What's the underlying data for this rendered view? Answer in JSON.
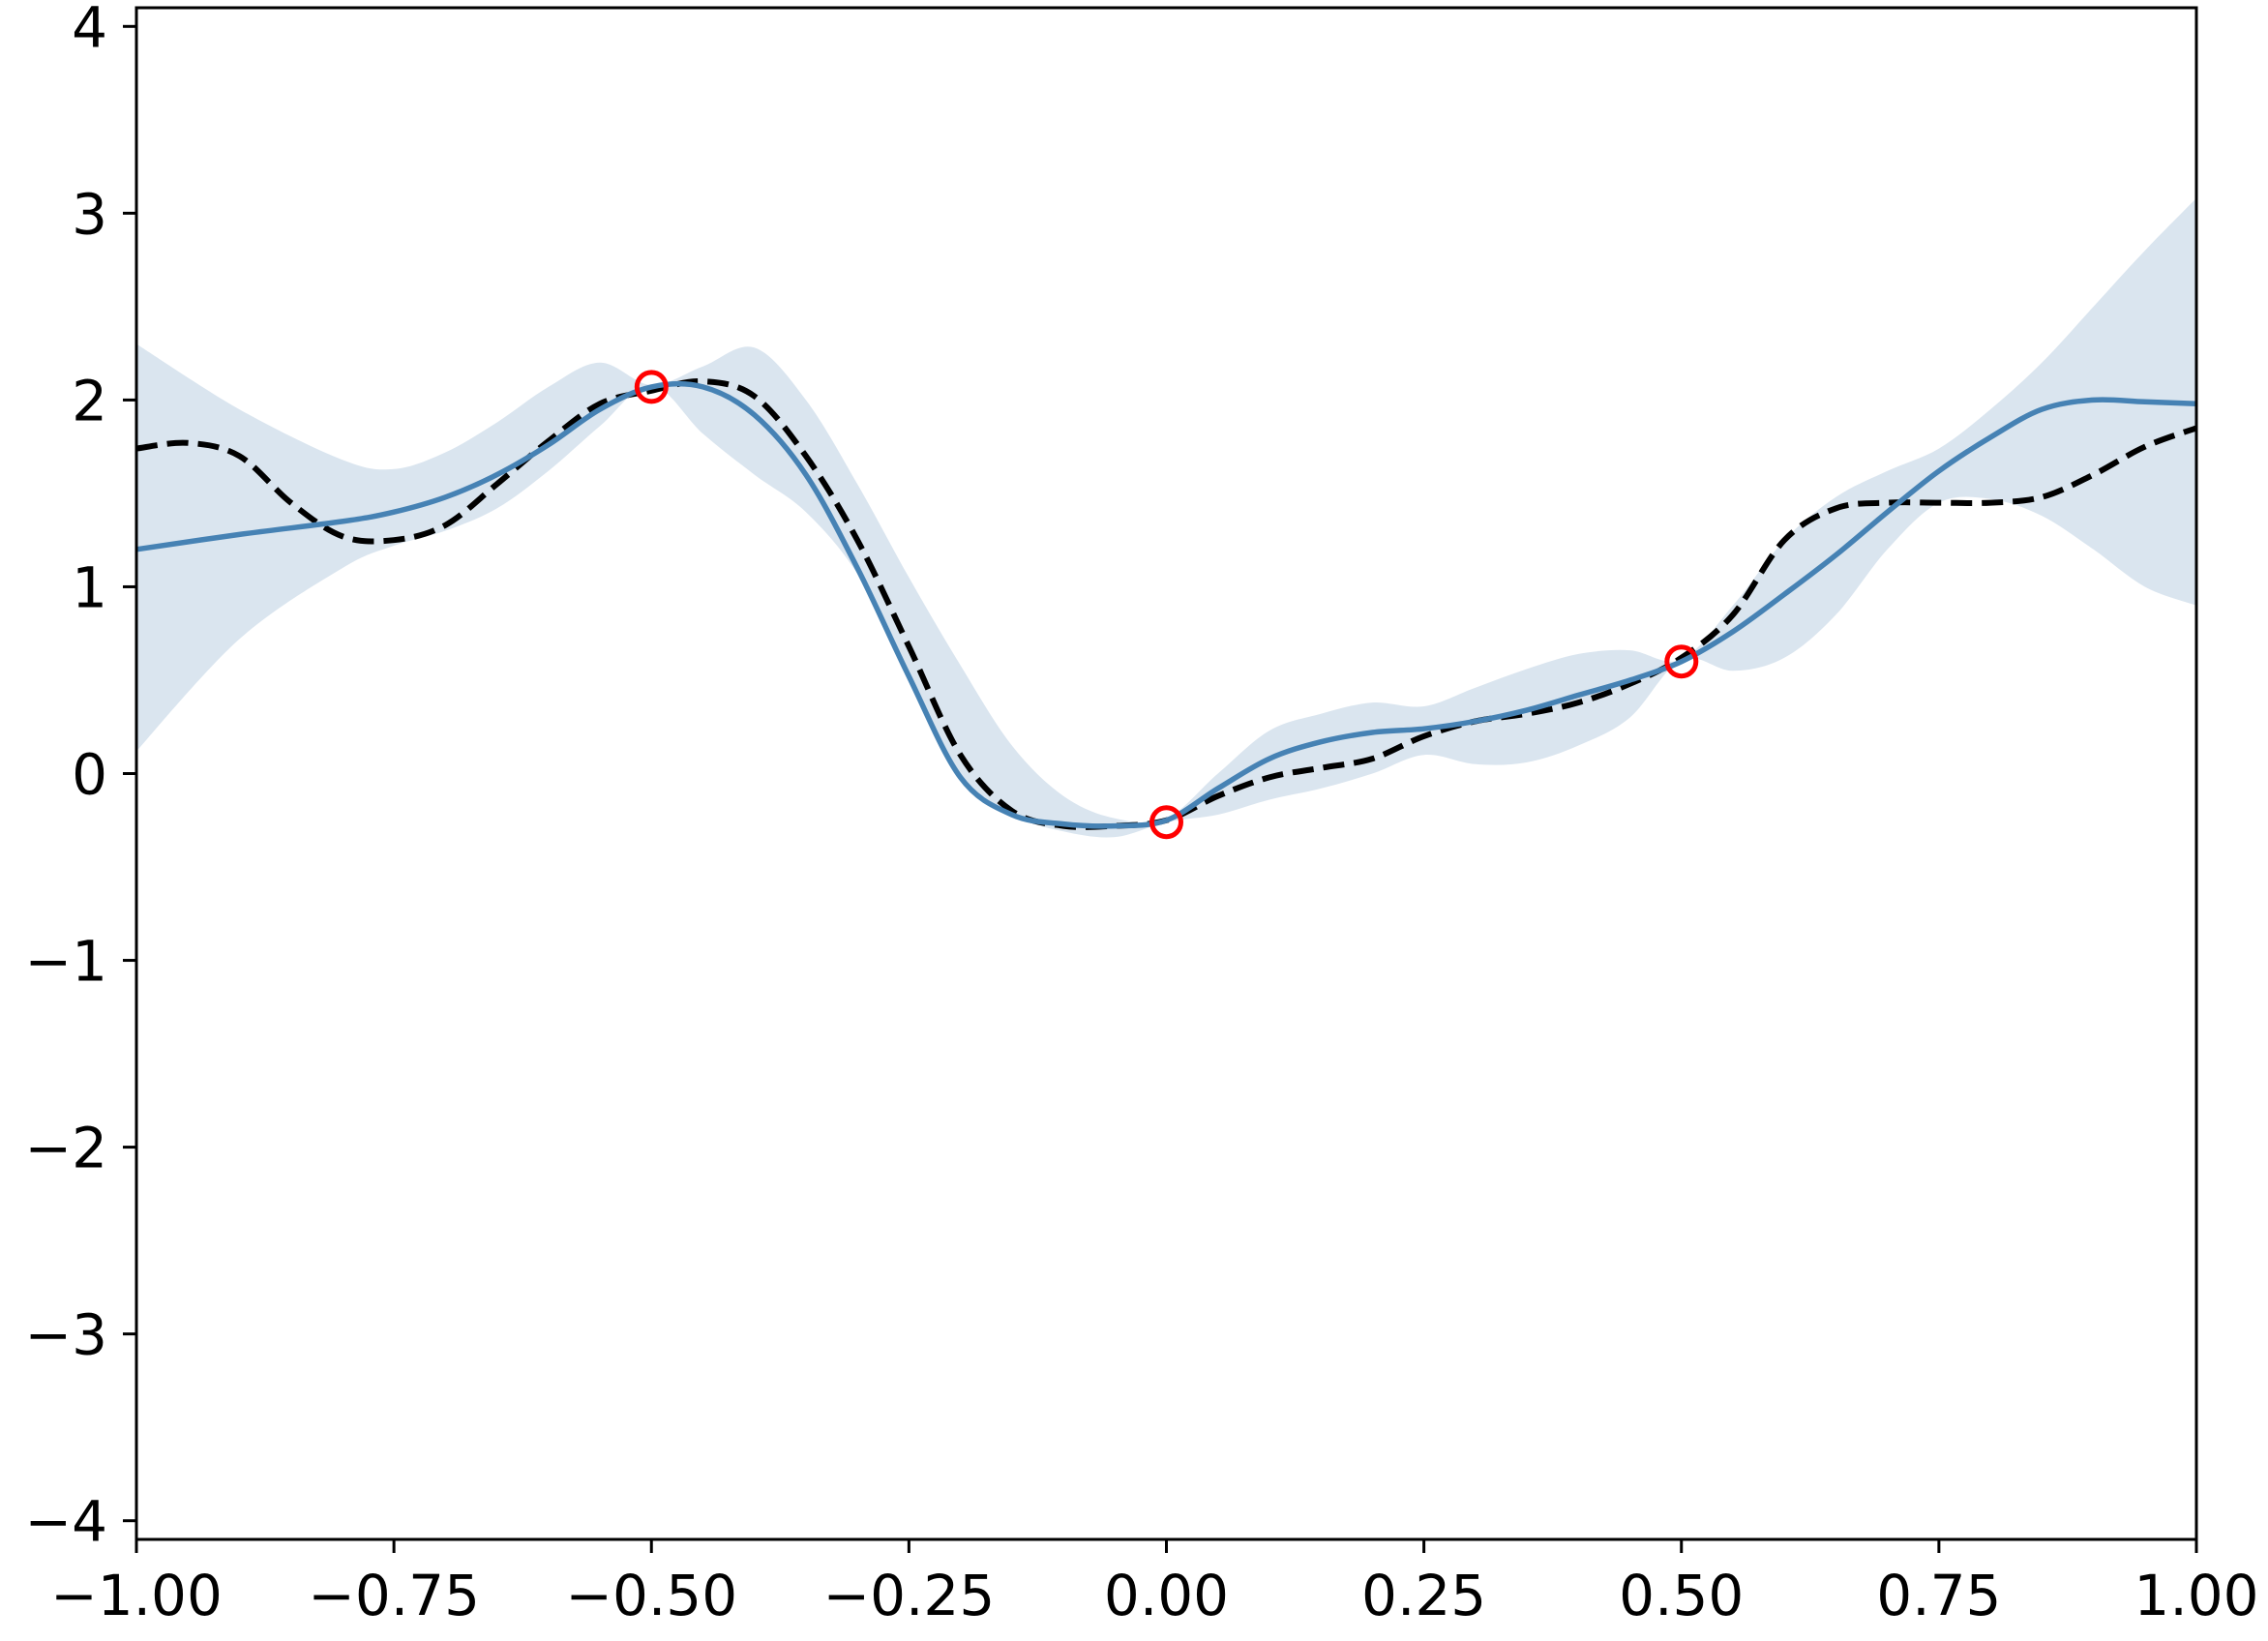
{
  "chart_data": {
    "type": "line",
    "title": "",
    "xlabel": "",
    "ylabel": "",
    "xlim": [
      -1.0,
      1.0
    ],
    "ylim": [
      -4.1,
      4.1
    ],
    "grid": false,
    "x_ticks": [
      -1.0,
      -0.75,
      -0.5,
      -0.25,
      0.0,
      0.25,
      0.5,
      0.75,
      1.0
    ],
    "x_tick_labels": [
      "−1.00",
      "−0.75",
      "−0.50",
      "−0.25",
      "0.00",
      "0.25",
      "0.50",
      "0.75",
      "1.00"
    ],
    "y_ticks": [
      -4,
      -3,
      -2,
      -1,
      0,
      1,
      2,
      3,
      4
    ],
    "y_tick_labels": [
      "−4",
      "−3",
      "−2",
      "−1",
      "0",
      "1",
      "2",
      "3",
      "4"
    ],
    "colors": {
      "mean": "#4682b4",
      "band": "#dae5ef",
      "true": "#000000",
      "observed": "#ff0000"
    },
    "band": {
      "x": [
        -1.0,
        -0.9,
        -0.8,
        -0.75,
        -0.7,
        -0.65,
        -0.6,
        -0.55,
        -0.5,
        -0.45,
        -0.4,
        -0.35,
        -0.3,
        -0.25,
        -0.2,
        -0.15,
        -0.1,
        -0.05,
        0.0,
        0.05,
        0.1,
        0.15,
        0.2,
        0.25,
        0.3,
        0.35,
        0.4,
        0.45,
        0.5,
        0.55,
        0.6,
        0.65,
        0.7,
        0.75,
        0.8,
        0.85,
        0.9,
        0.95,
        1.0
      ],
      "upper": [
        2.3,
        1.95,
        1.68,
        1.63,
        1.72,
        1.88,
        2.07,
        2.2,
        2.08,
        2.18,
        2.28,
        2.0,
        1.55,
        1.05,
        0.58,
        0.15,
        -0.12,
        -0.24,
        -0.24,
        0.0,
        0.23,
        0.32,
        0.38,
        0.36,
        0.46,
        0.56,
        0.64,
        0.66,
        0.61,
        0.9,
        1.25,
        1.48,
        1.62,
        1.74,
        1.95,
        2.2,
        2.5,
        2.8,
        3.08
      ],
      "lower": [
        0.12,
        0.72,
        1.1,
        1.22,
        1.3,
        1.42,
        1.62,
        1.86,
        2.08,
        1.82,
        1.6,
        1.4,
        1.07,
        0.55,
        0.0,
        -0.22,
        -0.31,
        -0.34,
        -0.26,
        -0.22,
        -0.14,
        -0.08,
        0.0,
        0.1,
        0.05,
        0.06,
        0.15,
        0.3,
        0.61,
        0.55,
        0.62,
        0.85,
        1.2,
        1.45,
        1.47,
        1.38,
        1.2,
        1.0,
        0.9
      ]
    },
    "series": [
      {
        "x": [
          -1.0,
          -0.9,
          -0.8,
          -0.75,
          -0.7,
          -0.65,
          -0.6,
          -0.55,
          -0.5,
          -0.45,
          -0.4,
          -0.35,
          -0.3,
          -0.25,
          -0.2,
          -0.15,
          -0.1,
          -0.05,
          0.0,
          0.05,
          0.1,
          0.15,
          0.2,
          0.25,
          0.3,
          0.35,
          0.4,
          0.45,
          0.5,
          0.55,
          0.6,
          0.65,
          0.7,
          0.75,
          0.8,
          0.85,
          0.9,
          0.95,
          1.0
        ],
        "y": [
          1.2,
          1.28,
          1.35,
          1.4,
          1.48,
          1.6,
          1.76,
          1.95,
          2.07,
          2.07,
          1.92,
          1.6,
          1.1,
          0.52,
          -0.02,
          -0.22,
          -0.27,
          -0.28,
          -0.25,
          -0.08,
          0.08,
          0.17,
          0.22,
          0.24,
          0.28,
          0.34,
          0.42,
          0.5,
          0.6,
          0.76,
          0.96,
          1.17,
          1.4,
          1.62,
          1.8,
          1.95,
          2.0,
          1.99,
          1.98
        ],
        "style": "solid"
      },
      {
        "x": [
          -1.0,
          -0.95,
          -0.9,
          -0.85,
          -0.8,
          -0.75,
          -0.7,
          -0.65,
          -0.6,
          -0.55,
          -0.5,
          -0.45,
          -0.4,
          -0.35,
          -0.3,
          -0.25,
          -0.2,
          -0.15,
          -0.1,
          -0.05,
          0.0,
          0.05,
          0.1,
          0.15,
          0.2,
          0.25,
          0.3,
          0.35,
          0.4,
          0.45,
          0.5,
          0.55,
          0.6,
          0.65,
          0.7,
          0.75,
          0.8,
          0.85,
          0.9,
          0.95,
          1.0
        ],
        "y": [
          1.74,
          1.77,
          1.7,
          1.45,
          1.27,
          1.25,
          1.33,
          1.55,
          1.78,
          1.98,
          2.05,
          2.1,
          2.02,
          1.7,
          1.25,
          0.68,
          0.1,
          -0.2,
          -0.28,
          -0.28,
          -0.25,
          -0.12,
          -0.02,
          0.03,
          0.08,
          0.2,
          0.28,
          0.32,
          0.38,
          0.48,
          0.62,
          0.85,
          1.25,
          1.42,
          1.45,
          1.45,
          1.45,
          1.48,
          1.6,
          1.75,
          1.85
        ],
        "style": "dashed"
      }
    ],
    "points": {
      "x": [
        -0.5,
        0.0,
        0.5
      ],
      "y": [
        2.07,
        -0.26,
        0.6
      ]
    }
  }
}
